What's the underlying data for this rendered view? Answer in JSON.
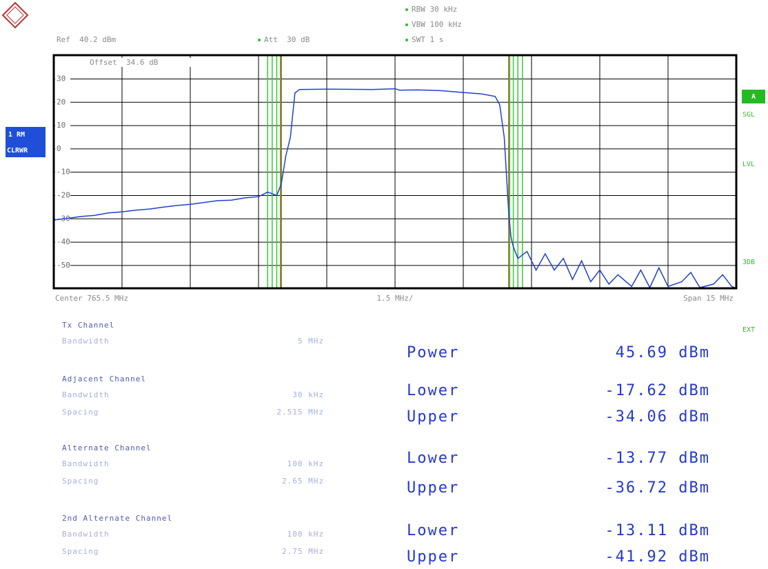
{
  "header": {
    "rbw": "RBW 30 kHz",
    "vbw": "VBW 100 kHz",
    "swt": "SWT 1 s",
    "ref": "Ref  40.2 dBm",
    "att": "Att  30 dB",
    "offset": "Offset  34.6 dB"
  },
  "side_left": [
    "1 RM",
    "CLRWR"
  ],
  "side_right": [
    "A",
    "SGL",
    "LVL",
    "3DB",
    "EXT"
  ],
  "footer": {
    "center": "Center 765.5 MHz",
    "div": "1.5 MHz/",
    "span": "Span 15 MHz"
  },
  "chart_data": {
    "type": "line",
    "color": "#1f3fd0",
    "xlim": [
      758,
      773
    ],
    "xticks": [
      758,
      759.5,
      761,
      762.5,
      764,
      765.5,
      767,
      768.5,
      770,
      771.5,
      773
    ],
    "ylim": [
      -59.8,
      40.2
    ],
    "yticks": [
      30,
      20,
      10,
      0,
      -10,
      -20,
      -30,
      -40,
      -50
    ],
    "grid": true,
    "vlines": [
      {
        "x": 762.7,
        "color": "#33cc33"
      },
      {
        "x": 762.8,
        "color": "#33cc33"
      },
      {
        "x": 762.9,
        "color": "#33cc33"
      },
      {
        "x": 762.98,
        "color": "#33cc33"
      },
      {
        "x": 763.0,
        "color": "#b5441a"
      },
      {
        "x": 768.0,
        "color": "#b5441a"
      },
      {
        "x": 768.02,
        "color": "#33cc33"
      },
      {
        "x": 768.1,
        "color": "#33cc33"
      },
      {
        "x": 768.2,
        "color": "#33cc33"
      },
      {
        "x": 768.3,
        "color": "#33cc33"
      }
    ],
    "x": [
      758,
      758.3,
      758.6,
      758.9,
      759.2,
      759.5,
      759.8,
      760.1,
      760.4,
      760.7,
      761.0,
      761.3,
      761.6,
      761.9,
      762.2,
      762.5,
      762.7,
      762.9,
      763.0,
      763.1,
      763.2,
      763.3,
      763.4,
      764,
      765,
      765.5,
      765.6,
      766,
      766.5,
      767,
      767.4,
      767.7,
      767.8,
      767.9,
      768.0,
      768.05,
      768.1,
      768.2,
      768.4,
      768.6,
      768.8,
      769.0,
      769.2,
      769.4,
      769.6,
      769.8,
      770.0,
      770.2,
      770.4,
      770.7,
      770.9,
      771.1,
      771.3,
      771.5,
      771.8,
      772.0,
      772.2,
      772.5,
      772.7,
      772.9,
      773
    ],
    "values": [
      -30.5,
      -29.8,
      -29,
      -28.5,
      -27.5,
      -27,
      -26.3,
      -25.8,
      -25,
      -24.3,
      -23.8,
      -23,
      -22.2,
      -22,
      -21,
      -20.5,
      -18.5,
      -20,
      -15,
      -3,
      5,
      24,
      25.5,
      25.6,
      25.5,
      25.8,
      25.2,
      25.3,
      25,
      24.2,
      23.6,
      22.5,
      19,
      5,
      -28,
      -38,
      -42,
      -47,
      -44,
      -52,
      -45,
      -52,
      -47,
      -56,
      -48,
      -57,
      -52,
      -58,
      -54,
      -59,
      -52,
      -59.5,
      -51,
      -59,
      -57,
      -53,
      -59.5,
      -58,
      -54,
      -59,
      -59.8
    ]
  },
  "channels": [
    {
      "title": "Tx Channel",
      "rows": [
        {
          "label": "Bandwidth",
          "value": "5 MHz"
        }
      ]
    },
    {
      "title": "Adjacent Channel",
      "rows": [
        {
          "label": "Bandwidth",
          "value": "30 kHz"
        },
        {
          "label": "Spacing",
          "value": "2.515 MHz"
        }
      ]
    },
    {
      "title": "Alternate Channel",
      "rows": [
        {
          "label": "Bandwidth",
          "value": "100 kHz"
        },
        {
          "label": "Spacing",
          "value": "2.65 MHz"
        }
      ]
    },
    {
      "title": "2nd Alternate Channel",
      "rows": [
        {
          "label": "Bandwidth",
          "value": "100 kHz"
        },
        {
          "label": "Spacing",
          "value": "2.75 MHz"
        }
      ]
    }
  ],
  "results": [
    {
      "label": "Power",
      "value": "45.69 dBm"
    },
    {
      "label": "Lower",
      "value": "-17.62 dBm"
    },
    {
      "label": "Upper",
      "value": "-34.06 dBm"
    },
    {
      "label": "Lower",
      "value": "-13.77 dBm"
    },
    {
      "label": "Upper",
      "value": "-36.72 dBm"
    },
    {
      "label": "Lower",
      "value": "-13.11 dBm"
    },
    {
      "label": "Upper",
      "value": "-41.92 dBm"
    }
  ]
}
